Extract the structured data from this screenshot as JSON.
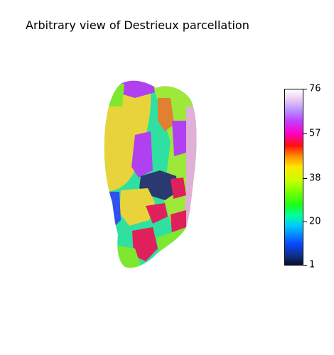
{
  "title": "Arbitrary view of Destrieux parcellation",
  "colorbar": {
    "min": 1,
    "max": 76,
    "ticks": [
      "76",
      "57",
      "38",
      "20",
      "1"
    ],
    "tick_values": [
      76,
      57,
      38,
      20,
      1
    ]
  },
  "colors": {
    "yellow_region": "#e8d43a",
    "purple_region": "#b040f0",
    "teal_region": "#30e0a0",
    "green_region": "#7ee830",
    "navy_region": "#2a3a70",
    "crimson_region": "#e0205a",
    "blue_region": "#3050f0",
    "orange_region": "#e08030",
    "pink_region": "#e0b0d8"
  }
}
